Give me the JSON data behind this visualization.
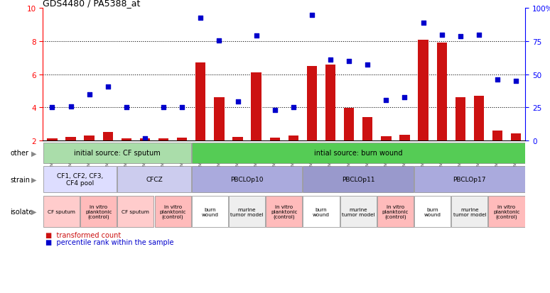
{
  "title": "GDS4480 / PA5388_at",
  "samples": [
    "GSM637589",
    "GSM637590",
    "GSM637579",
    "GSM637580",
    "GSM637591",
    "GSM637592",
    "GSM637581",
    "GSM637582",
    "GSM637583",
    "GSM637584",
    "GSM637593",
    "GSM637594",
    "GSM637573",
    "GSM637574",
    "GSM637585",
    "GSM637586",
    "GSM637595",
    "GSM637596",
    "GSM637575",
    "GSM637576",
    "GSM637587",
    "GSM637588",
    "GSM637597",
    "GSM637598",
    "GSM637577",
    "GSM637578"
  ],
  "bar_values": [
    2.1,
    2.2,
    2.3,
    2.5,
    2.1,
    2.1,
    2.1,
    2.15,
    6.7,
    4.6,
    2.2,
    6.1,
    2.15,
    2.3,
    6.5,
    6.6,
    3.95,
    3.4,
    2.25,
    2.35,
    8.1,
    7.9,
    4.6,
    4.7,
    2.6,
    2.4
  ],
  "dot_values": [
    4.0,
    4.05,
    4.8,
    5.25,
    4.0,
    2.1,
    4.0,
    4.0,
    9.4,
    8.05,
    4.35,
    8.35,
    3.85,
    4.0,
    9.6,
    6.9,
    6.8,
    6.6,
    4.45,
    4.6,
    9.1,
    8.4,
    8.3,
    8.4,
    5.7,
    5.6
  ],
  "bar_color": "#cc1111",
  "dot_color": "#0000cc",
  "other_row": {
    "label": "other",
    "groups": [
      {
        "text": "initial source: CF sputum",
        "start": 0,
        "end": 8,
        "color": "#aaddaa"
      },
      {
        "text": "intial source: burn wound",
        "start": 8,
        "end": 26,
        "color": "#55cc55"
      }
    ]
  },
  "strain_row": {
    "label": "strain",
    "groups": [
      {
        "text": "CF1, CF2, CF3,\nCF4 pool",
        "start": 0,
        "end": 4,
        "color": "#ddddff"
      },
      {
        "text": "CFCZ",
        "start": 4,
        "end": 8,
        "color": "#ccccee"
      },
      {
        "text": "PBCLOp10",
        "start": 8,
        "end": 14,
        "color": "#aaaadd"
      },
      {
        "text": "PBCLOp11",
        "start": 14,
        "end": 20,
        "color": "#9999cc"
      },
      {
        "text": "PBCLOp17",
        "start": 20,
        "end": 26,
        "color": "#aaaadd"
      }
    ]
  },
  "isolate_row": {
    "label": "isolate",
    "groups": [
      {
        "text": "CF sputum",
        "start": 0,
        "end": 2,
        "color": "#ffcccc"
      },
      {
        "text": "in vitro\nplanktonic\n(control)",
        "start": 2,
        "end": 4,
        "color": "#ffbbbb"
      },
      {
        "text": "CF sputum",
        "start": 4,
        "end": 6,
        "color": "#ffcccc"
      },
      {
        "text": "in vitro\nplanktonic\n(control)",
        "start": 6,
        "end": 8,
        "color": "#ffbbbb"
      },
      {
        "text": "burn\nwound",
        "start": 8,
        "end": 10,
        "color": "#ffffff"
      },
      {
        "text": "murine\ntumor model",
        "start": 10,
        "end": 12,
        "color": "#eeeeee"
      },
      {
        "text": "in vitro\nplanktonic\n(control)",
        "start": 12,
        "end": 14,
        "color": "#ffbbbb"
      },
      {
        "text": "burn\nwound",
        "start": 14,
        "end": 16,
        "color": "#ffffff"
      },
      {
        "text": "murine\ntumor model",
        "start": 16,
        "end": 18,
        "color": "#eeeeee"
      },
      {
        "text": "in vitro\nplanktonic\n(control)",
        "start": 18,
        "end": 20,
        "color": "#ffbbbb"
      },
      {
        "text": "burn\nwound",
        "start": 20,
        "end": 22,
        "color": "#ffffff"
      },
      {
        "text": "murine\ntumor model",
        "start": 22,
        "end": 24,
        "color": "#eeeeee"
      },
      {
        "text": "in vitro\nplanktonic\n(control)",
        "start": 24,
        "end": 26,
        "color": "#ffbbbb"
      }
    ]
  }
}
